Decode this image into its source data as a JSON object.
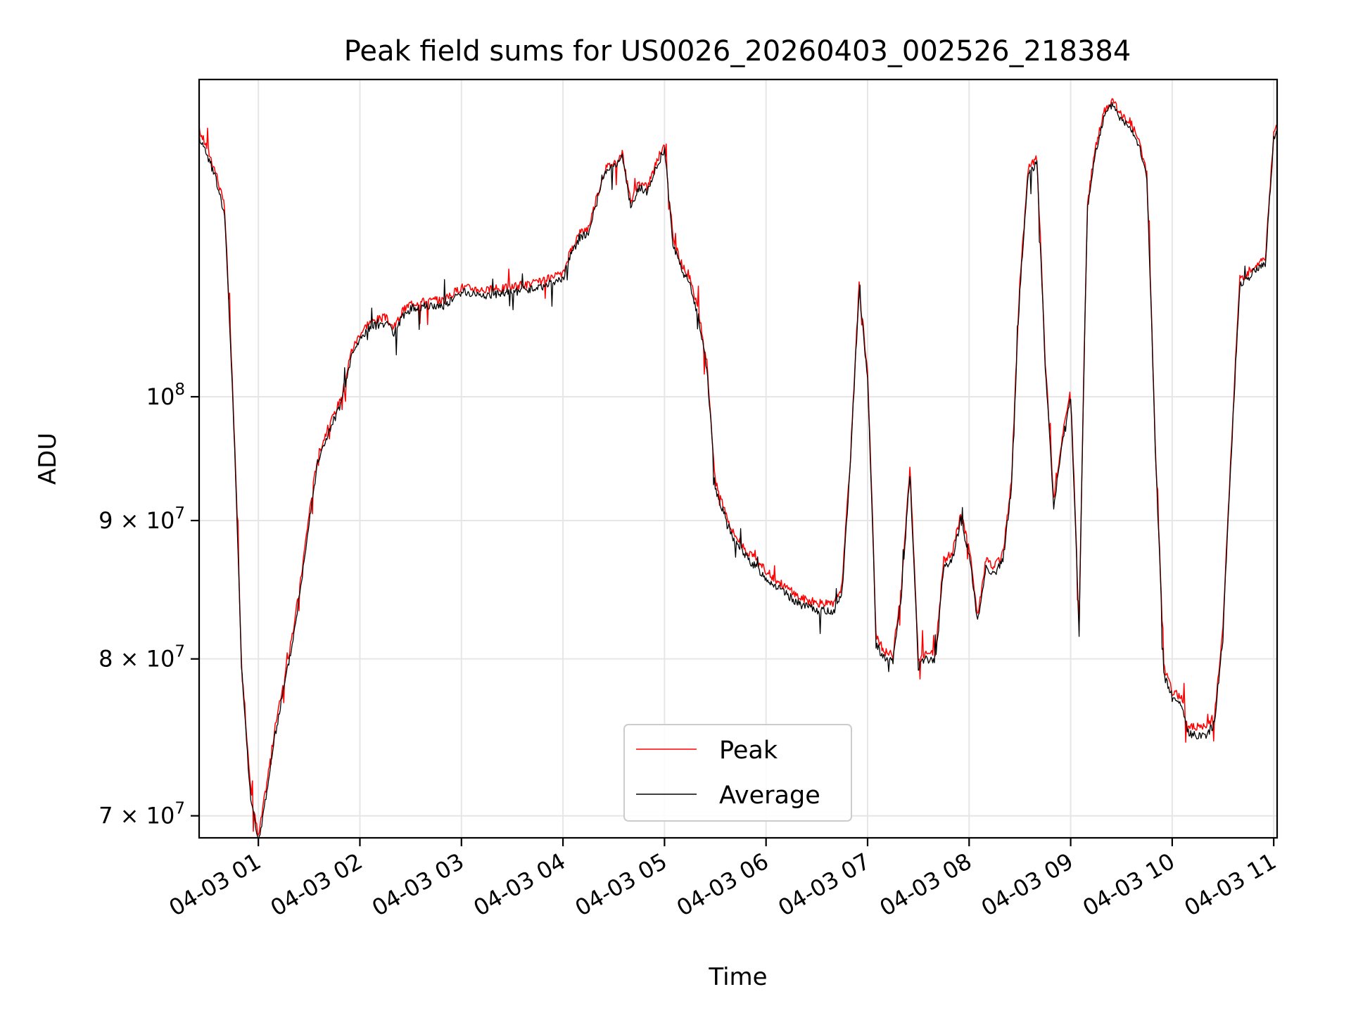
{
  "chart_data": {
    "type": "line",
    "title": "Peak field sums for US0026_20260403_002526_218384",
    "xlabel": "Time",
    "ylabel": "ADU",
    "x_tick_labels": [
      "04-03 01",
      "04-03 02",
      "04-03 03",
      "04-03 04",
      "04-03 05",
      "04-03 06",
      "04-03 07",
      "04-03 08",
      "04-03 09",
      "04-03 10",
      "04-03 11"
    ],
    "y_ticks": [
      {
        "value": 70000000,
        "mantissa": "7",
        "base": "10",
        "exp": "7"
      },
      {
        "value": 80000000,
        "mantissa": "8",
        "base": "10",
        "exp": "7"
      },
      {
        "value": 90000000,
        "mantissa": "9",
        "base": "10",
        "exp": "7"
      },
      {
        "value": 100000000,
        "mantissa": "",
        "base": "10",
        "exp": "8"
      }
    ],
    "y_scale": "log",
    "xlim": [
      "2026-04-03 00:25",
      "2026-04-03 11:02"
    ],
    "ylim": [
      68700000,
      131000000
    ],
    "grid": true,
    "legend_position": "bottom-center",
    "x": [
      "00:25",
      "00:30",
      "00:35",
      "00:40",
      "00:45",
      "00:50",
      "00:55",
      "01:00",
      "01:05",
      "01:10",
      "01:15",
      "01:20",
      "01:25",
      "01:30",
      "01:35",
      "01:40",
      "01:45",
      "01:50",
      "01:55",
      "02:00",
      "02:05",
      "02:10",
      "02:15",
      "02:20",
      "02:25",
      "02:30",
      "02:40",
      "02:50",
      "03:00",
      "03:15",
      "03:30",
      "03:45",
      "04:00",
      "04:05",
      "04:10",
      "04:15",
      "04:20",
      "04:25",
      "04:30",
      "04:35",
      "04:40",
      "04:45",
      "04:50",
      "04:55",
      "05:00",
      "05:05",
      "05:10",
      "05:15",
      "05:20",
      "05:25",
      "05:30",
      "05:40",
      "05:50",
      "06:00",
      "06:10",
      "06:20",
      "06:30",
      "06:40",
      "06:45",
      "06:50",
      "06:55",
      "07:00",
      "07:05",
      "07:10",
      "07:15",
      "07:20",
      "07:25",
      "07:30",
      "07:35",
      "07:40",
      "07:45",
      "07:50",
      "07:55",
      "08:00",
      "08:05",
      "08:10",
      "08:15",
      "08:20",
      "08:25",
      "08:30",
      "08:35",
      "08:40",
      "08:45",
      "08:50",
      "08:55",
      "09:00",
      "09:05",
      "09:10",
      "09:15",
      "09:20",
      "09:25",
      "09:30",
      "09:35",
      "09:40",
      "09:45",
      "09:50",
      "09:55",
      "10:00",
      "10:05",
      "10:10",
      "10:15",
      "10:20",
      "10:25",
      "10:30",
      "10:35",
      "10:40",
      "10:45",
      "10:50",
      "10:55",
      "11:00",
      "11:02"
    ],
    "series": [
      {
        "name": "Peak",
        "color": "#ff0000",
        "values": [
          125500000,
          123500000,
          121000000,
          117500000,
          100000000,
          80000000,
          72000000,
          68700000,
          72000000,
          75500000,
          78500000,
          81500000,
          85500000,
          90500000,
          95000000,
          97000000,
          98500000,
          100500000,
          104000000,
          105500000,
          106500000,
          106800000,
          107000000,
          106000000,
          107500000,
          108300000,
          108500000,
          108600000,
          109800000,
          109500000,
          109800000,
          110200000,
          111000000,
          113500000,
          115000000,
          115500000,
          118500000,
          121500000,
          122000000,
          123000000,
          118000000,
          120000000,
          119500000,
          122000000,
          124000000,
          114500000,
          112000000,
          110500000,
          107500000,
          103000000,
          93000000,
          89200000,
          87500000,
          86200000,
          85200000,
          84300000,
          83900000,
          83800000,
          85200000,
          95200000,
          110000000,
          102000000,
          81500000,
          80500000,
          80300000,
          85000000,
          94000000,
          80000000,
          80500000,
          80300000,
          87000000,
          87500000,
          90500000,
          88000000,
          83000000,
          87000000,
          86500000,
          87500000,
          93000000,
          110000000,
          121500000,
          122500000,
          103000000,
          91500000,
          96500000,
          100500000,
          82000000,
          118000000,
          124000000,
          127500000,
          128800000,
          127000000,
          126500000,
          124500000,
          121000000,
          96000000,
          79500000,
          77800000,
          77500000,
          75500000,
          75500000,
          75500000,
          76200000,
          82000000,
          96000000,
          110500000,
          111200000,
          112000000,
          112500000,
          125000000,
          126000000
        ]
      },
      {
        "name": "Average",
        "color": "#000000",
        "values": [
          124800000,
          122800000,
          120300000,
          116800000,
          99500000,
          79500000,
          71500000,
          68300000,
          71500000,
          75000000,
          78000000,
          81000000,
          85000000,
          90000000,
          94500000,
          96500000,
          98000000,
          100000000,
          103500000,
          105000000,
          106000000,
          106300000,
          106500000,
          105500000,
          107000000,
          107800000,
          108000000,
          108100000,
          109300000,
          109000000,
          109300000,
          109700000,
          110500000,
          113000000,
          114500000,
          115000000,
          118000000,
          121000000,
          121500000,
          122500000,
          117500000,
          119500000,
          119000000,
          121500000,
          123500000,
          114000000,
          111500000,
          110000000,
          107000000,
          102500000,
          92500000,
          88700000,
          87000000,
          85700000,
          84700000,
          83800000,
          83400000,
          83300000,
          84700000,
          94700000,
          109500000,
          101500000,
          81000000,
          80000000,
          79800000,
          84500000,
          93500000,
          79500000,
          80000000,
          79800000,
          86500000,
          87000000,
          90000000,
          87500000,
          82500000,
          86500000,
          86000000,
          87000000,
          92500000,
          109500000,
          121000000,
          122000000,
          102500000,
          91000000,
          96000000,
          100000000,
          81500000,
          117500000,
          123500000,
          127000000,
          128300000,
          126500000,
          126000000,
          124000000,
          120500000,
          95500000,
          79000000,
          77300000,
          77000000,
          75000000,
          75000000,
          75000000,
          75700000,
          81500000,
          95500000,
          110000000,
          110700000,
          111500000,
          112000000,
          124500000,
          125500000
        ]
      }
    ]
  }
}
